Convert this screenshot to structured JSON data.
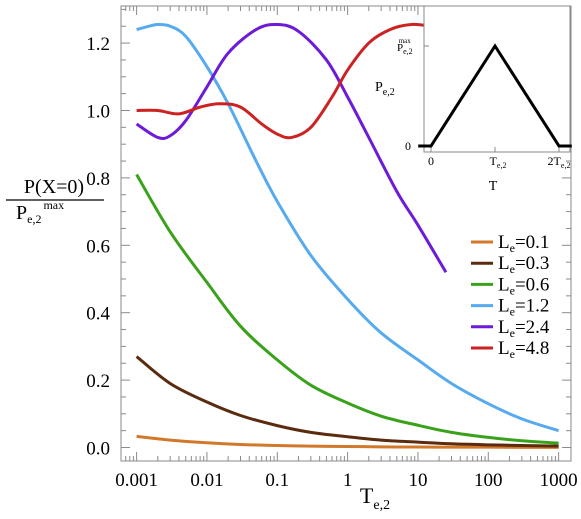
{
  "chart_data": [
    {
      "type": "line",
      "xscale": "log",
      "xlim": [
        0.0006,
        1500
      ],
      "ylim": [
        -0.04,
        1.31
      ],
      "xticks": [
        0.001,
        0.01,
        0.1,
        1,
        10,
        100,
        1000
      ],
      "xtick_labels": [
        "0.001",
        "0.01",
        "0.1",
        "1",
        "10",
        "100",
        "1000"
      ],
      "yticks": [
        0.0,
        0.2,
        0.4,
        0.6,
        0.8,
        1.0,
        1.2
      ],
      "ytick_labels": [
        "0.0",
        "0.2",
        "0.4",
        "0.6",
        "0.8",
        "1.0",
        "1.2"
      ],
      "xlabel": {
        "main": "T",
        "sub": "e,2"
      },
      "ylabel": {
        "numerator": "P(X=0)",
        "denominator_main": "P",
        "denominator_sub": "e,2",
        "denominator_sup": "max"
      },
      "legend_position": "bottom-right",
      "series": [
        {
          "name": {
            "main": "L",
            "sub": "e",
            "rest": "=0.1"
          },
          "color": "#d2782a",
          "x": [
            0.001,
            0.003,
            0.01,
            0.03,
            0.1,
            0.3,
            1,
            3,
            10,
            30,
            100,
            300,
            1000
          ],
          "y": [
            0.033,
            0.022,
            0.014,
            0.009,
            0.006,
            0.004,
            0.003,
            0.002,
            0.0015,
            0.001,
            0.001,
            0.0005,
            0.0005
          ]
        },
        {
          "name": {
            "main": "L",
            "sub": "e",
            "rest": "=0.3"
          },
          "color": "#5a2b0e",
          "x": [
            0.001,
            0.003,
            0.01,
            0.03,
            0.1,
            0.3,
            1,
            3,
            10,
            30,
            100,
            300,
            1000
          ],
          "y": [
            0.27,
            0.19,
            0.135,
            0.095,
            0.065,
            0.045,
            0.032,
            0.022,
            0.016,
            0.011,
            0.008,
            0.006,
            0.004
          ]
        },
        {
          "name": {
            "main": "L",
            "sub": "e",
            "rest": "=0.6"
          },
          "color": "#3aa21a",
          "x": [
            0.001,
            0.003,
            0.01,
            0.03,
            0.1,
            0.3,
            1,
            3,
            10,
            30,
            100,
            300,
            1000
          ],
          "y": [
            0.81,
            0.64,
            0.49,
            0.36,
            0.26,
            0.185,
            0.132,
            0.093,
            0.066,
            0.045,
            0.03,
            0.02,
            0.013
          ]
        },
        {
          "name": {
            "main": "L",
            "sub": "e",
            "rest": "=1.2"
          },
          "color": "#57aaee",
          "x": [
            0.001,
            0.0015,
            0.002,
            0.003,
            0.005,
            0.01,
            0.02,
            0.05,
            0.1,
            0.3,
            1,
            3,
            10,
            30,
            100,
            300,
            1000
          ],
          "y": [
            1.24,
            1.25,
            1.255,
            1.25,
            1.22,
            1.13,
            1.02,
            0.85,
            0.73,
            0.57,
            0.44,
            0.34,
            0.26,
            0.19,
            0.13,
            0.085,
            0.05
          ]
        },
        {
          "name": {
            "main": "L",
            "sub": "e",
            "rest": "=2.4"
          },
          "color": "#6d1bd6",
          "x": [
            0.001,
            0.002,
            0.003,
            0.005,
            0.01,
            0.02,
            0.05,
            0.1,
            0.2,
            0.5,
            1,
            2,
            5,
            10,
            25
          ],
          "y": [
            0.96,
            0.92,
            0.925,
            0.97,
            1.07,
            1.17,
            1.24,
            1.255,
            1.235,
            1.15,
            1.04,
            0.92,
            0.76,
            0.66,
            0.52
          ]
        },
        {
          "name": {
            "main": "L",
            "sub": "e",
            "rest": "=4.8"
          },
          "color": "#cc2222",
          "x": [
            0.001,
            0.002,
            0.004,
            0.008,
            0.015,
            0.03,
            0.06,
            0.1,
            0.16,
            0.3,
            0.6,
            1,
            2,
            4,
            8,
            15,
            25
          ],
          "y": [
            1.0,
            1.0,
            0.99,
            1.01,
            1.02,
            1.01,
            0.96,
            0.93,
            0.92,
            0.95,
            1.04,
            1.12,
            1.2,
            1.24,
            1.255,
            1.25,
            1.24
          ]
        }
      ]
    },
    {
      "type": "line",
      "role": "inset",
      "series": [
        {
          "name": "",
          "color": "#000000",
          "x": [
            -0.2,
            0,
            1,
            2,
            2.2
          ],
          "y": [
            0,
            0,
            1,
            0,
            0
          ]
        }
      ],
      "xticks": [
        0,
        1,
        2
      ],
      "xtick_labels": [
        "0",
        {
          "main": "T",
          "sub": "e,2"
        },
        {
          "pre": "2",
          "main": "T",
          "sub": "e,2"
        }
      ],
      "ytick_labels": [
        "0",
        {
          "main": "P",
          "sub": "e,2",
          "sup": "max"
        }
      ],
      "xlabel": "T",
      "ylabel": {
        "main": "P",
        "sub": "e,2"
      }
    }
  ]
}
